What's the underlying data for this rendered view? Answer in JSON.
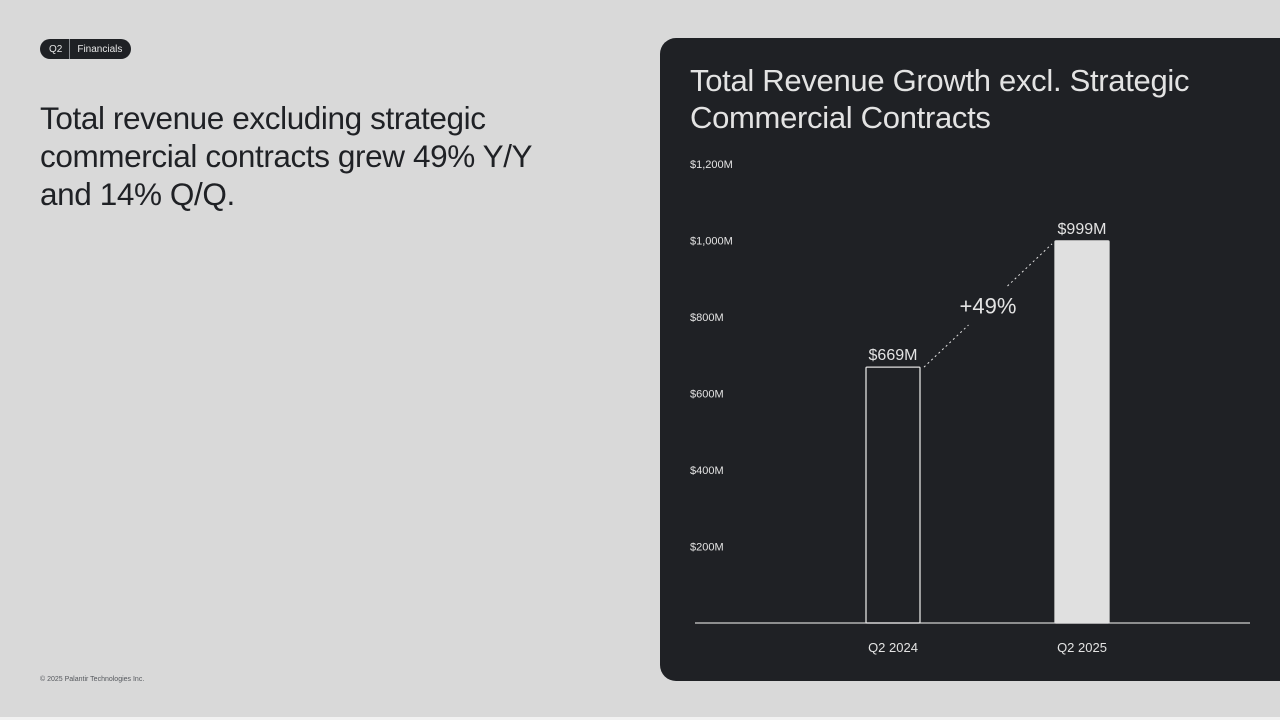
{
  "tag": {
    "quarter": "Q2",
    "section": "Financials"
  },
  "headline": "Total revenue excluding strategic commercial contracts grew 49% Y/Y and 14% Q/Q.",
  "footer": {
    "copyright": "© 2025 Palantir Technologies Inc."
  },
  "colors": {
    "page_background": "#d9d9d9",
    "card_background": "#1f2125",
    "text_dark": "#1f2125",
    "text_light": "#e3e3e3",
    "bar_fill_highlight": "#e0e0e0",
    "axis_line": "#cfcfcf"
  },
  "chart_data": {
    "type": "bar",
    "title": "Total Revenue Growth excl. Strategic Commercial Contracts",
    "categories": [
      "Q2 2024",
      "Q2 2025"
    ],
    "values": [
      669,
      999
    ],
    "data_labels": [
      "$669M",
      "$999M"
    ],
    "bar_styles": [
      "outline",
      "filled"
    ],
    "ylim": [
      0,
      1200
    ],
    "yticks": [
      {
        "value": 200,
        "label": "$200M"
      },
      {
        "value": 400,
        "label": "$400M"
      },
      {
        "value": 600,
        "label": "$600M"
      },
      {
        "value": 800,
        "label": "$800M"
      },
      {
        "value": 1000,
        "label": "$1,000M"
      },
      {
        "value": 1200,
        "label": "$1,200M"
      }
    ],
    "annotation": "+49%",
    "grid": false,
    "xlabel": "",
    "ylabel": ""
  }
}
